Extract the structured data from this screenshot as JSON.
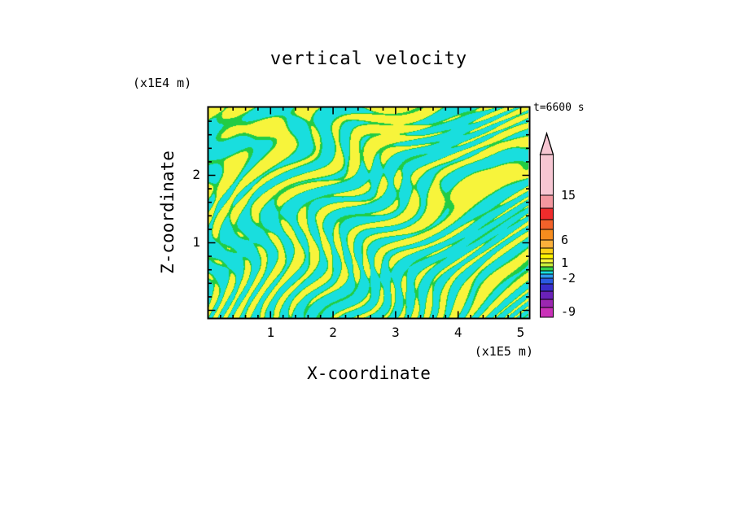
{
  "figure": {
    "title": "vertical velocity",
    "time_label": "t=6600 s",
    "x_axis": {
      "label": "X-coordinate",
      "units": "(x1E5 m)"
    },
    "y_axis": {
      "label": "Z-coordinate",
      "units": "(x1E4 m)"
    }
  },
  "chart_data": {
    "type": "heatmap",
    "title": "vertical velocity",
    "annotation": "t=6600 s",
    "xlabel": "X-coordinate (x1E5 m)",
    "ylabel": "Z-coordinate (x1E4 m)",
    "x_range": [
      0,
      5.15
    ],
    "y_range": [
      0,
      3.0
    ],
    "x_ticks": [
      1,
      2,
      3,
      4,
      5
    ],
    "y_ticks": [
      1,
      2
    ],
    "minor_tick_step": 0.2,
    "grid": false,
    "legend": "colorbar-right",
    "description": "Contour-filled 2D field of vertical velocity from a wave simulation: fine alternating vertical streaks of positive (yellow) and negative (cyan) velocity near the bottom boundary, broadening into larger cells aloft; thin green contour bands separate the filled levels.",
    "field_colors": {
      "positive": "#F7F43B",
      "negative": "#19DEDE",
      "boundary": "#22CC44",
      "frame": "#000000"
    },
    "colorbar": {
      "orientation": "vertical",
      "levels": [
        -9,
        -2,
        1,
        6,
        15
      ],
      "tip_color": "#F6C6D2",
      "segments": [
        {
          "color": "#F6C6D2",
          "h": 50
        },
        {
          "color": "#F2979F",
          "h": 16
        },
        {
          "color": "#EE2C2C",
          "h": 14
        },
        {
          "color": "#F2622A",
          "h": 12
        },
        {
          "color": "#F68C1E",
          "h": 13
        },
        {
          "color": "#FBB03B",
          "h": 10
        },
        {
          "color": "#FDD017",
          "h": 7
        },
        {
          "color": "#FFF200",
          "h": 6
        },
        {
          "color": "#F7F43B",
          "h": 5
        },
        {
          "color": "#C8EE3C",
          "h": 5
        },
        {
          "color": "#35D04A",
          "h": 5
        },
        {
          "color": "#19DEDE",
          "h": 4
        },
        {
          "color": "#2E9BF0",
          "h": 5
        },
        {
          "color": "#2B5BE2",
          "h": 7
        },
        {
          "color": "#3A2ECB",
          "h": 9
        },
        {
          "color": "#6A22B8",
          "h": 10
        },
        {
          "color": "#9B27B0",
          "h": 10
        },
        {
          "color": "#C932B8",
          "h": 12
        }
      ],
      "labels": [
        {
          "text": "15",
          "offset": 50
        },
        {
          "text": "6",
          "offset": 105
        },
        {
          "text": "1",
          "offset": 133
        },
        {
          "text": "-2",
          "offset": 152
        },
        {
          "text": "-9",
          "offset": 193
        }
      ]
    }
  }
}
